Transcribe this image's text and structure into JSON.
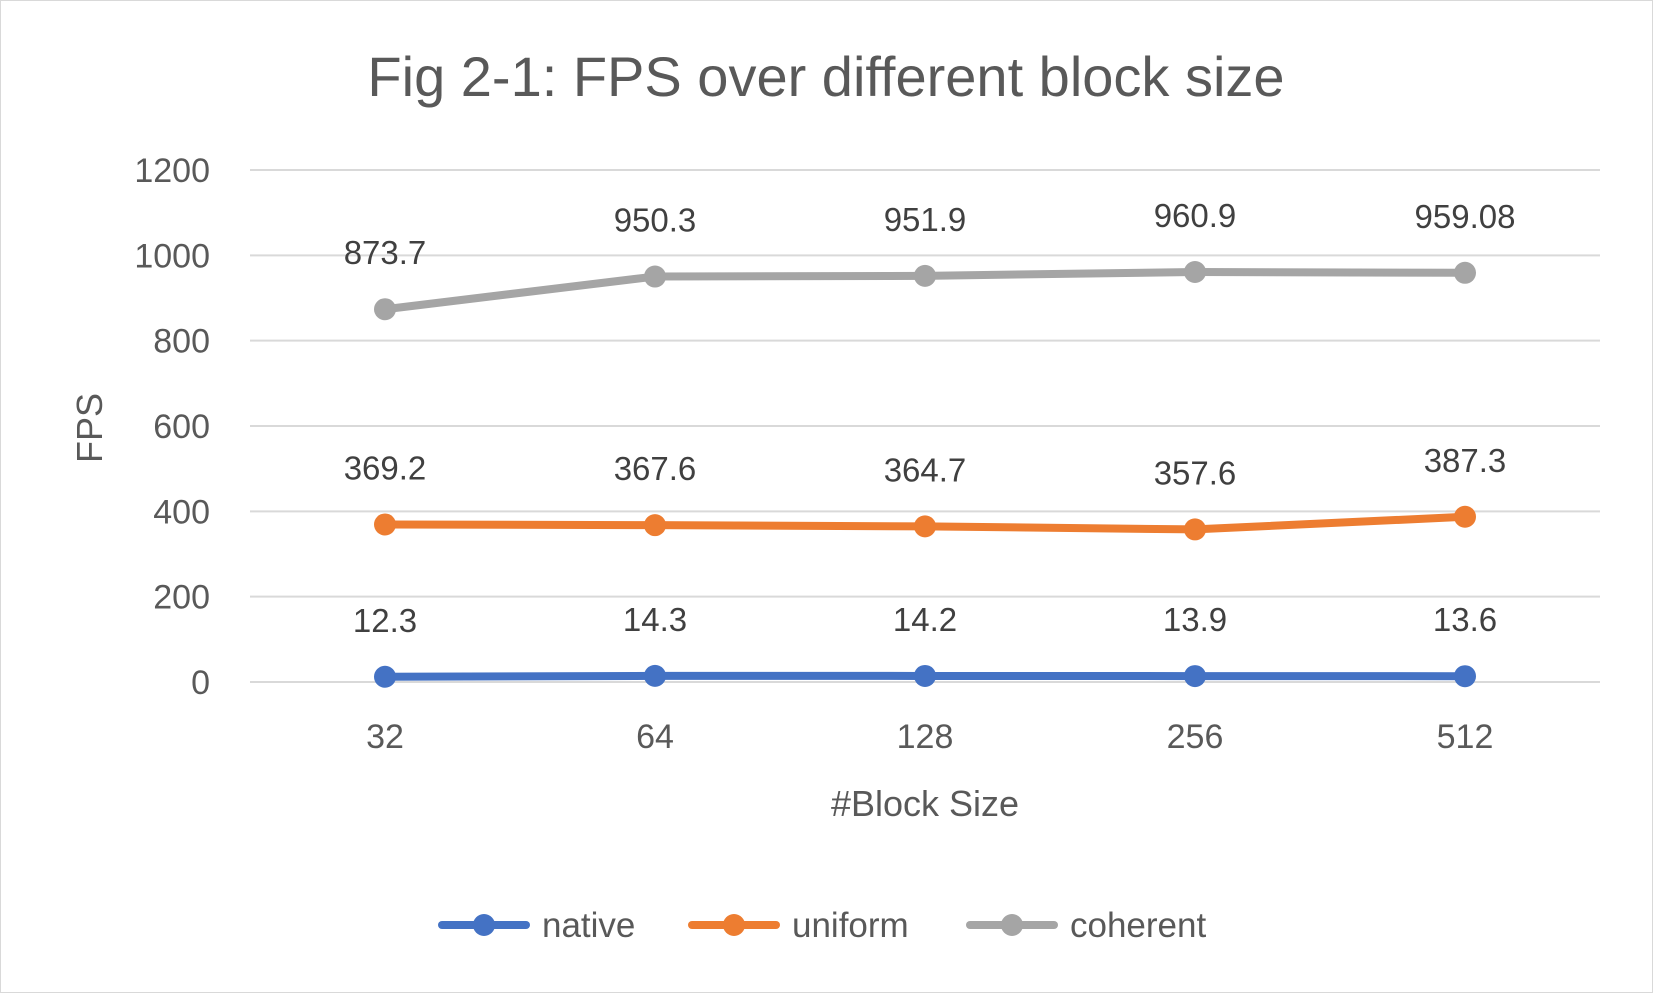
{
  "chart_data": {
    "type": "line",
    "title": "Fig 2-1: FPS over different block size",
    "xlabel": "#Block Size",
    "ylabel": "FPS",
    "categories": [
      "32",
      "64",
      "128",
      "256",
      "512"
    ],
    "ylim": [
      0,
      1200
    ],
    "yticks": [
      0,
      200,
      400,
      600,
      800,
      1000,
      1200
    ],
    "grid": true,
    "legend_position": "bottom",
    "series": [
      {
        "name": "native",
        "color": "#4472C4",
        "values": [
          12.3,
          14.3,
          14.2,
          13.9,
          13.6
        ]
      },
      {
        "name": "uniform",
        "color": "#ED7D31",
        "values": [
          369.2,
          367.6,
          364.7,
          357.6,
          387.3
        ]
      },
      {
        "name": "coherent",
        "color": "#A5A5A5",
        "values": [
          873.7,
          950.3,
          951.9,
          960.9,
          959.08
        ]
      }
    ]
  }
}
